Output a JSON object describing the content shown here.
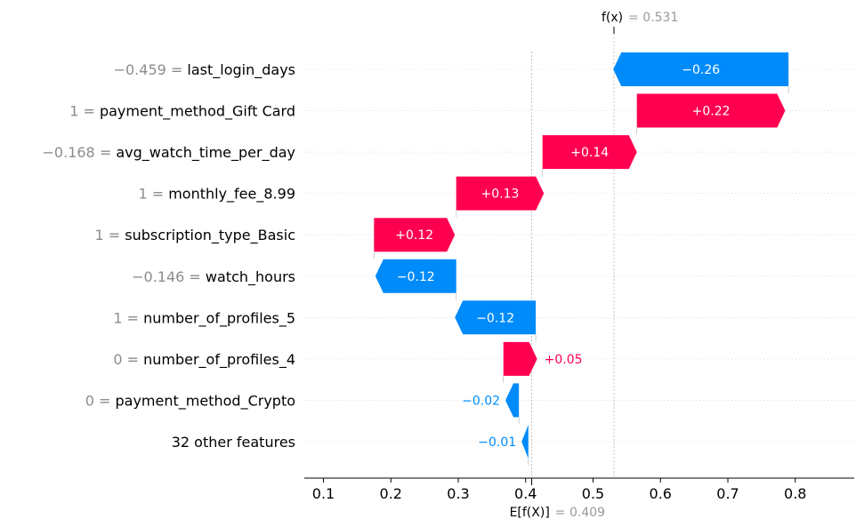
{
  "chart_data": {
    "type": "waterfall",
    "base_value": {
      "label": "E[f(X)]",
      "value": "0.409",
      "x": 0.409
    },
    "final_value": {
      "label": "f(x)",
      "value": "0.531",
      "x": 0.531
    },
    "xlim": [
      0.07,
      0.96
    ],
    "xticks": [
      {
        "value": 0.1,
        "label": "0.1"
      },
      {
        "value": 0.2,
        "label": "0.2"
      },
      {
        "value": 0.3,
        "label": "0.3"
      },
      {
        "value": 0.4,
        "label": "0.4"
      },
      {
        "value": 0.5,
        "label": "0.5"
      },
      {
        "value": 0.6,
        "label": "0.6"
      },
      {
        "value": 0.7,
        "label": "0.7"
      },
      {
        "value": 0.8,
        "label": "0.8"
      }
    ],
    "features": [
      {
        "value": "−0.459",
        "name": "last_login_days",
        "shap": -0.26,
        "start": 0.79,
        "label": "−0.26",
        "direction": "negative"
      },
      {
        "value": "1",
        "name": "payment_method_Gift Card",
        "shap": 0.22,
        "start": 0.565,
        "label": "+0.22",
        "direction": "positive"
      },
      {
        "value": "−0.168",
        "name": "avg_watch_time_per_day",
        "shap": 0.14,
        "start": 0.425,
        "label": "+0.14",
        "direction": "positive"
      },
      {
        "value": "1",
        "name": "monthly_fee_8.99",
        "shap": 0.13,
        "start": 0.297,
        "label": "+0.13",
        "direction": "positive"
      },
      {
        "value": "1",
        "name": "subscription_type_Basic",
        "shap": 0.12,
        "start": 0.175,
        "label": "+0.12",
        "direction": "positive"
      },
      {
        "value": "−0.146",
        "name": "watch_hours",
        "shap": -0.12,
        "start": 0.297,
        "label": "−0.12",
        "direction": "negative"
      },
      {
        "value": "1",
        "name": "number_of_profiles_5",
        "shap": -0.12,
        "start": 0.415,
        "label": "−0.12",
        "direction": "negative"
      },
      {
        "value": "0",
        "name": "number_of_profiles_4",
        "shap": 0.05,
        "start": 0.367,
        "label": "+0.05",
        "direction": "positive"
      },
      {
        "value": "0",
        "name": "payment_method_Crypto",
        "shap": -0.02,
        "start": 0.39,
        "label": "−0.02",
        "direction": "negative"
      },
      {
        "value": "",
        "name": "32 other features",
        "shap": -0.01,
        "start": 0.404,
        "label": "−0.01",
        "direction": "negative"
      }
    ]
  },
  "colors": {
    "positive": "#ff0051",
    "negative": "#008bfb",
    "axis": "#000000",
    "muted": "#999999",
    "grid": "#cccccc"
  }
}
